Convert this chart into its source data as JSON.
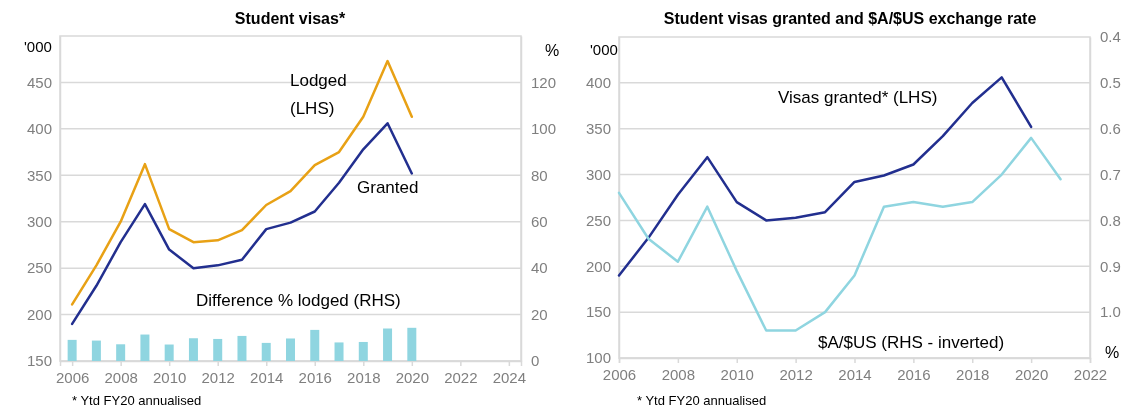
{
  "chart_data": [
    {
      "type": "line",
      "title": "Student visas*",
      "ylabel": "'000",
      "y2label": "%",
      "x": [
        2006,
        2007,
        2008,
        2009,
        2010,
        2011,
        2012,
        2013,
        2014,
        2015,
        2016,
        2017,
        2018,
        2019,
        2020
      ],
      "xlim": [
        2005.5,
        2024.5
      ],
      "xticks": [
        2006,
        2008,
        2010,
        2012,
        2014,
        2016,
        2018,
        2020,
        2022,
        2024
      ],
      "ylim": [
        150,
        500
      ],
      "yticks": [
        150,
        200,
        250,
        300,
        350,
        400,
        450
      ],
      "y2lim": [
        0,
        140
      ],
      "y2ticks": [
        0,
        20,
        40,
        60,
        80,
        100,
        120
      ],
      "grid": "y",
      "series": [
        {
          "name": "Difference % lodged (RHS)",
          "type": "bar",
          "axis": "y2",
          "color": "#8fd5e0",
          "values": [
            9.1,
            8.8,
            7.2,
            11.4,
            7.1,
            9.8,
            9.5,
            10.8,
            7.8,
            9.7,
            13.4,
            8.0,
            8.2,
            14.0,
            14.3
          ]
        },
        {
          "name": "Lodged (LHS)",
          "color": "#e8a115",
          "values": [
            211,
            253,
            300,
            362,
            292,
            278,
            280,
            291,
            318,
            333,
            361,
            375,
            413,
            473,
            413
          ]
        },
        {
          "name": "Granted",
          "color": "#222f8f",
          "values": [
            190,
            231,
            278,
            319,
            270,
            250,
            253,
            259,
            292,
            299,
            311,
            342,
            378,
            406,
            352
          ]
        }
      ],
      "annotations": [
        "* Ytd FY20 annualised"
      ]
    },
    {
      "type": "line",
      "title": "Student visas granted and $A/$US exchange rate",
      "ylabel": "'000",
      "y2label": "%",
      "xlim": [
        2006,
        2022
      ],
      "xticks": [
        2006,
        2008,
        2010,
        2012,
        2014,
        2016,
        2018,
        2020,
        2022
      ],
      "ylim": [
        100,
        450
      ],
      "yticks": [
        100,
        150,
        200,
        250,
        300,
        350,
        400
      ],
      "y2lim": [
        1.1,
        0.4
      ],
      "y2ticks": [
        {
          "value": 0.4,
          "label": "0.4"
        },
        {
          "value": 0.5,
          "label": "0.5"
        },
        {
          "value": 0.6,
          "label": "0.6"
        },
        {
          "value": 0.7,
          "label": "0.7"
        },
        {
          "value": 0.8,
          "label": "0.8"
        },
        {
          "value": 0.9,
          "label": "0.9"
        },
        {
          "value": 1.0,
          "label": "1.0"
        }
      ],
      "grid": "y",
      "series": [
        {
          "name": "Visas granted* (LHS)",
          "color": "#222f8f",
          "x": [
            2006,
            2007,
            2008,
            2009,
            2010,
            2011,
            2012,
            2013,
            2014,
            2015,
            2016,
            2017,
            2018,
            2019,
            2020
          ],
          "values": [
            190,
            231,
            278,
            319,
            270,
            250,
            253,
            259,
            292,
            299,
            311,
            342,
            378,
            406,
            352
          ]
        },
        {
          "name": "$A/$US (RHS - inverted)",
          "axis": "y2",
          "color": "#8fd5e0",
          "x": [
            2006,
            2007,
            2008,
            2009,
            2010,
            2011,
            2012,
            2013,
            2014,
            2015,
            2016,
            2017,
            2018,
            2019,
            2020,
            2021
          ],
          "values": [
            0.74,
            0.84,
            0.89,
            0.77,
            0.91,
            1.04,
            1.04,
            1.0,
            0.92,
            0.77,
            0.76,
            0.77,
            0.76,
            0.7,
            0.62,
            0.71
          ]
        }
      ],
      "annotations": [
        "* Ytd FY20 annualised"
      ]
    }
  ]
}
